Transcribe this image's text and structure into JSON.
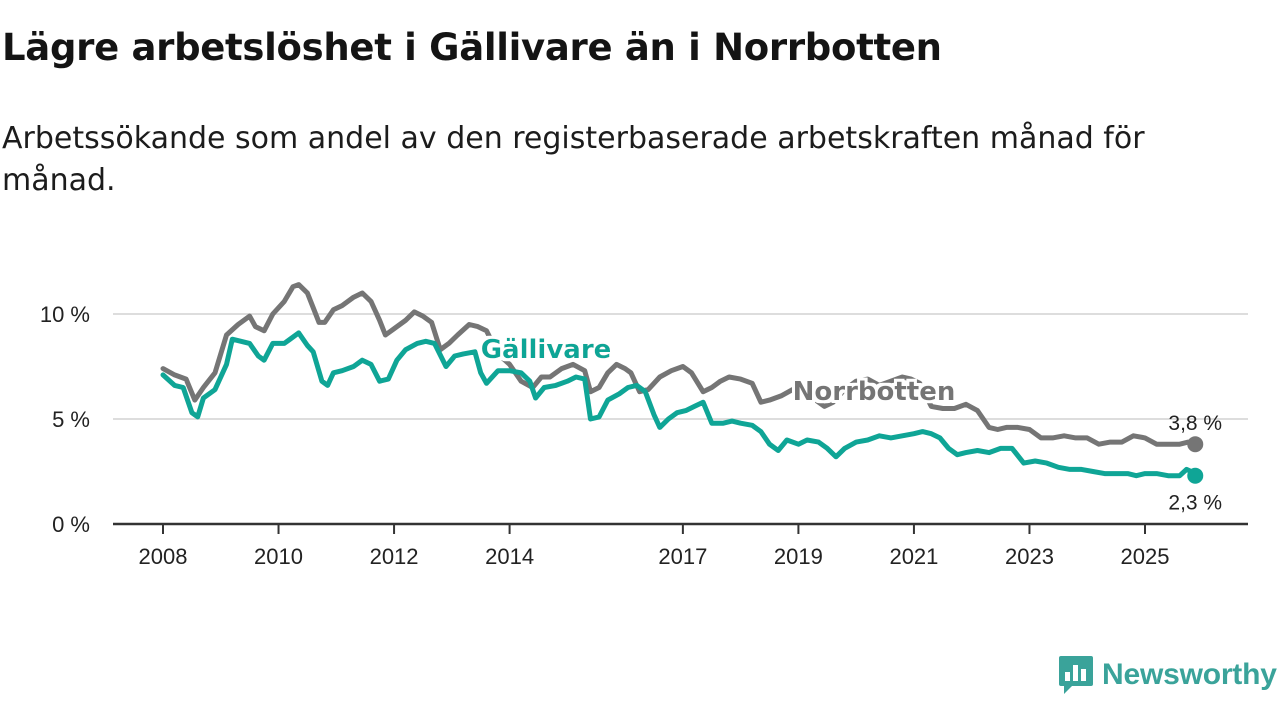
{
  "title": "Lägre arbetslöshet i Gällivare än i Norrbotten",
  "subtitle": "Arbetssökande som andel av den registerbaserade arbetskraften månad för månad.",
  "brand": "Newsworthy",
  "colors": {
    "gallivare": "#0fa596",
    "norrbotten": "#757575",
    "grid": "#dddddd",
    "axis": "#333333",
    "brand": "#3aa39a"
  },
  "chart_data": {
    "type": "line",
    "title": "Lägre arbetslöshet i Gällivare än i Norrbotten",
    "ylim": [
      0,
      12
    ],
    "xlim": [
      2008.0,
      2026.8
    ],
    "yticks": [
      {
        "value": 0,
        "label": "0 %"
      },
      {
        "value": 5,
        "label": "5 %"
      },
      {
        "value": 10,
        "label": "10 %"
      }
    ],
    "xticks": [
      {
        "value": 2008,
        "label": "2008"
      },
      {
        "value": 2010,
        "label": "2010"
      },
      {
        "value": 2012,
        "label": "2012"
      },
      {
        "value": 2014,
        "label": "2014"
      },
      {
        "value": 2017,
        "label": "2017"
      },
      {
        "value": 2019,
        "label": "2019"
      },
      {
        "value": 2021,
        "label": "2021"
      },
      {
        "value": 2023,
        "label": "2023"
      },
      {
        "value": 2025,
        "label": "2025"
      }
    ],
    "series": [
      {
        "name": "Norrbotten",
        "label": "Norrbotten",
        "end_label": "3,8 %",
        "points": [
          [
            2008.0,
            7.4
          ],
          [
            2008.2,
            7.1
          ],
          [
            2008.4,
            6.9
          ],
          [
            2008.55,
            5.9
          ],
          [
            2008.7,
            6.5
          ],
          [
            2008.9,
            7.2
          ],
          [
            2009.1,
            9.0
          ],
          [
            2009.3,
            9.5
          ],
          [
            2009.5,
            9.9
          ],
          [
            2009.6,
            9.4
          ],
          [
            2009.75,
            9.2
          ],
          [
            2009.9,
            10.0
          ],
          [
            2010.1,
            10.6
          ],
          [
            2010.25,
            11.3
          ],
          [
            2010.35,
            11.4
          ],
          [
            2010.5,
            11.0
          ],
          [
            2010.6,
            10.3
          ],
          [
            2010.7,
            9.6
          ],
          [
            2010.8,
            9.6
          ],
          [
            2010.95,
            10.2
          ],
          [
            2011.1,
            10.4
          ],
          [
            2011.3,
            10.8
          ],
          [
            2011.45,
            11.0
          ],
          [
            2011.6,
            10.6
          ],
          [
            2011.75,
            9.7
          ],
          [
            2011.85,
            9.0
          ],
          [
            2012.0,
            9.3
          ],
          [
            2012.2,
            9.7
          ],
          [
            2012.35,
            10.1
          ],
          [
            2012.5,
            9.9
          ],
          [
            2012.65,
            9.6
          ],
          [
            2012.8,
            8.3
          ],
          [
            2012.95,
            8.6
          ],
          [
            2013.1,
            9.0
          ],
          [
            2013.3,
            9.5
          ],
          [
            2013.45,
            9.4
          ],
          [
            2013.6,
            9.2
          ],
          [
            2013.8,
            8.1
          ],
          [
            2014.0,
            7.6
          ],
          [
            2014.2,
            6.8
          ],
          [
            2014.4,
            6.5
          ],
          [
            2014.55,
            7.0
          ],
          [
            2014.7,
            7.0
          ],
          [
            2014.9,
            7.4
          ],
          [
            2015.1,
            7.6
          ],
          [
            2015.3,
            7.3
          ],
          [
            2015.4,
            6.3
          ],
          [
            2015.55,
            6.5
          ],
          [
            2015.7,
            7.2
          ],
          [
            2015.85,
            7.6
          ],
          [
            2016.0,
            7.4
          ],
          [
            2016.1,
            7.2
          ],
          [
            2016.25,
            6.3
          ],
          [
            2016.4,
            6.4
          ],
          [
            2016.6,
            7.0
          ],
          [
            2016.8,
            7.3
          ],
          [
            2017.0,
            7.5
          ],
          [
            2017.15,
            7.2
          ],
          [
            2017.35,
            6.3
          ],
          [
            2017.5,
            6.5
          ],
          [
            2017.65,
            6.8
          ],
          [
            2017.8,
            7.0
          ],
          [
            2018.0,
            6.9
          ],
          [
            2018.2,
            6.7
          ],
          [
            2018.35,
            5.8
          ],
          [
            2018.5,
            5.9
          ],
          [
            2018.7,
            6.1
          ],
          [
            2018.9,
            6.4
          ],
          [
            2019.1,
            6.2
          ],
          [
            2019.3,
            5.9
          ],
          [
            2019.45,
            5.6
          ],
          [
            2019.6,
            5.8
          ],
          [
            2019.8,
            6.4
          ],
          [
            2020.0,
            6.8
          ],
          [
            2020.2,
            6.9
          ],
          [
            2020.4,
            6.6
          ],
          [
            2020.6,
            6.8
          ],
          [
            2020.8,
            7.0
          ],
          [
            2020.95,
            6.9
          ],
          [
            2021.1,
            6.7
          ],
          [
            2021.3,
            5.6
          ],
          [
            2021.5,
            5.5
          ],
          [
            2021.7,
            5.5
          ],
          [
            2021.9,
            5.7
          ],
          [
            2022.1,
            5.4
          ],
          [
            2022.3,
            4.6
          ],
          [
            2022.45,
            4.5
          ],
          [
            2022.6,
            4.6
          ],
          [
            2022.8,
            4.6
          ],
          [
            2023.0,
            4.5
          ],
          [
            2023.2,
            4.1
          ],
          [
            2023.4,
            4.1
          ],
          [
            2023.6,
            4.2
          ],
          [
            2023.8,
            4.1
          ],
          [
            2024.0,
            4.1
          ],
          [
            2024.2,
            3.8
          ],
          [
            2024.4,
            3.9
          ],
          [
            2024.6,
            3.9
          ],
          [
            2024.8,
            4.2
          ],
          [
            2025.0,
            4.1
          ],
          [
            2025.2,
            3.8
          ],
          [
            2025.4,
            3.8
          ],
          [
            2025.6,
            3.8
          ],
          [
            2025.75,
            3.9
          ],
          [
            2025.87,
            3.8
          ]
        ]
      },
      {
        "name": "Gällivare",
        "label": "Gällivare",
        "end_label": "2,3 %",
        "points": [
          [
            2008.0,
            7.1
          ],
          [
            2008.2,
            6.6
          ],
          [
            2008.35,
            6.5
          ],
          [
            2008.5,
            5.3
          ],
          [
            2008.6,
            5.1
          ],
          [
            2008.7,
            6.0
          ],
          [
            2008.9,
            6.4
          ],
          [
            2009.1,
            7.6
          ],
          [
            2009.2,
            8.8
          ],
          [
            2009.35,
            8.7
          ],
          [
            2009.5,
            8.6
          ],
          [
            2009.65,
            8.0
          ],
          [
            2009.75,
            7.8
          ],
          [
            2009.9,
            8.6
          ],
          [
            2010.1,
            8.6
          ],
          [
            2010.2,
            8.8
          ],
          [
            2010.35,
            9.1
          ],
          [
            2010.5,
            8.5
          ],
          [
            2010.6,
            8.2
          ],
          [
            2010.75,
            6.8
          ],
          [
            2010.85,
            6.6
          ],
          [
            2010.95,
            7.2
          ],
          [
            2011.1,
            7.3
          ],
          [
            2011.3,
            7.5
          ],
          [
            2011.45,
            7.8
          ],
          [
            2011.6,
            7.6
          ],
          [
            2011.75,
            6.8
          ],
          [
            2011.9,
            6.9
          ],
          [
            2012.05,
            7.8
          ],
          [
            2012.2,
            8.3
          ],
          [
            2012.4,
            8.6
          ],
          [
            2012.55,
            8.7
          ],
          [
            2012.7,
            8.6
          ],
          [
            2012.9,
            7.5
          ],
          [
            2013.05,
            8.0
          ],
          [
            2013.2,
            8.1
          ],
          [
            2013.4,
            8.2
          ],
          [
            2013.5,
            7.2
          ],
          [
            2013.6,
            6.7
          ],
          [
            2013.8,
            7.3
          ],
          [
            2014.0,
            7.3
          ],
          [
            2014.2,
            7.2
          ],
          [
            2014.35,
            6.8
          ],
          [
            2014.45,
            6.0
          ],
          [
            2014.6,
            6.5
          ],
          [
            2014.8,
            6.6
          ],
          [
            2015.0,
            6.8
          ],
          [
            2015.15,
            7.0
          ],
          [
            2015.3,
            6.9
          ],
          [
            2015.4,
            5.0
          ],
          [
            2015.55,
            5.1
          ],
          [
            2015.7,
            5.9
          ],
          [
            2015.9,
            6.2
          ],
          [
            2016.05,
            6.5
          ],
          [
            2016.2,
            6.6
          ],
          [
            2016.35,
            6.3
          ],
          [
            2016.5,
            5.2
          ],
          [
            2016.6,
            4.6
          ],
          [
            2016.75,
            5.0
          ],
          [
            2016.9,
            5.3
          ],
          [
            2017.05,
            5.4
          ],
          [
            2017.2,
            5.6
          ],
          [
            2017.35,
            5.8
          ],
          [
            2017.5,
            4.8
          ],
          [
            2017.7,
            4.8
          ],
          [
            2017.85,
            4.9
          ],
          [
            2018.0,
            4.8
          ],
          [
            2018.2,
            4.7
          ],
          [
            2018.35,
            4.4
          ],
          [
            2018.5,
            3.8
          ],
          [
            2018.65,
            3.5
          ],
          [
            2018.8,
            4.0
          ],
          [
            2019.0,
            3.8
          ],
          [
            2019.15,
            4.0
          ],
          [
            2019.35,
            3.9
          ],
          [
            2019.5,
            3.6
          ],
          [
            2019.65,
            3.2
          ],
          [
            2019.8,
            3.6
          ],
          [
            2020.0,
            3.9
          ],
          [
            2020.2,
            4.0
          ],
          [
            2020.4,
            4.2
          ],
          [
            2020.6,
            4.1
          ],
          [
            2020.8,
            4.2
          ],
          [
            2021.0,
            4.3
          ],
          [
            2021.15,
            4.4
          ],
          [
            2021.3,
            4.3
          ],
          [
            2021.45,
            4.1
          ],
          [
            2021.6,
            3.6
          ],
          [
            2021.75,
            3.3
          ],
          [
            2021.9,
            3.4
          ],
          [
            2022.1,
            3.5
          ],
          [
            2022.3,
            3.4
          ],
          [
            2022.5,
            3.6
          ],
          [
            2022.7,
            3.6
          ],
          [
            2022.9,
            2.9
          ],
          [
            2023.1,
            3.0
          ],
          [
            2023.3,
            2.9
          ],
          [
            2023.5,
            2.7
          ],
          [
            2023.7,
            2.6
          ],
          [
            2023.9,
            2.6
          ],
          [
            2024.1,
            2.5
          ],
          [
            2024.3,
            2.4
          ],
          [
            2024.5,
            2.4
          ],
          [
            2024.7,
            2.4
          ],
          [
            2024.85,
            2.3
          ],
          [
            2025.0,
            2.4
          ],
          [
            2025.2,
            2.4
          ],
          [
            2025.4,
            2.3
          ],
          [
            2025.6,
            2.3
          ],
          [
            2025.72,
            2.6
          ],
          [
            2025.8,
            2.5
          ],
          [
            2025.87,
            2.3
          ]
        ]
      }
    ]
  }
}
